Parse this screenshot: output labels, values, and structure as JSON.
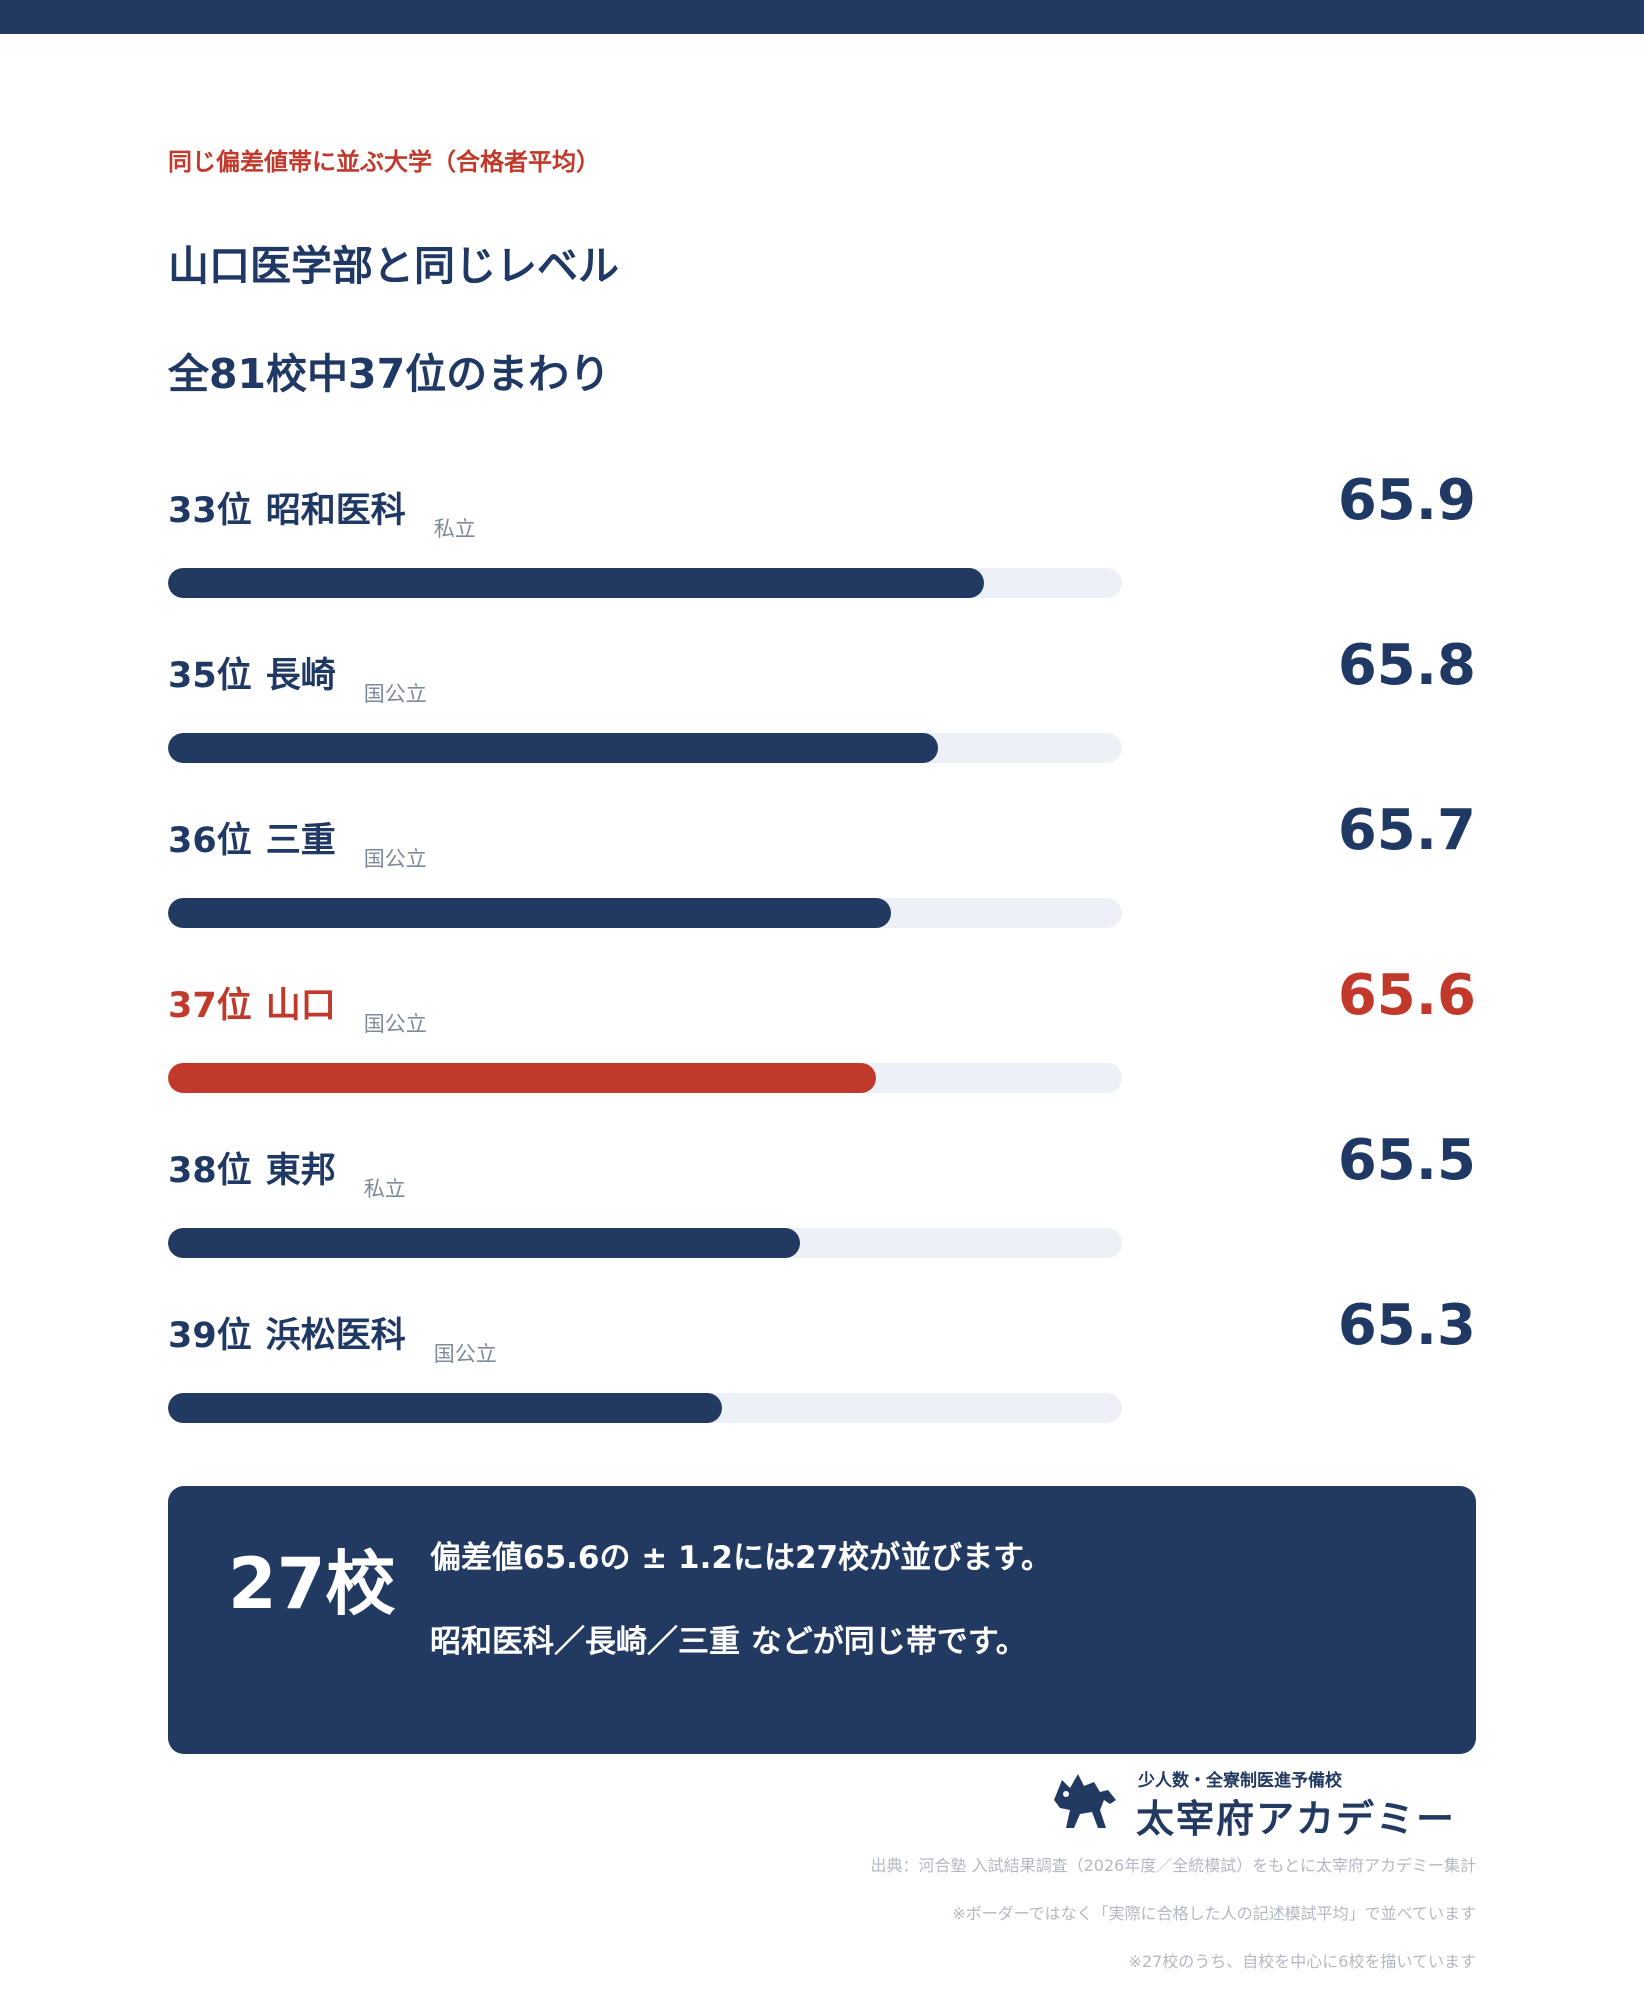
{
  "header": {
    "eyebrow": "同じ偏差値帯に並ぶ大学（合格者平均）",
    "title_line1": "山口医学部と同じレベル",
    "title_line2": "全81校中37位のまわり"
  },
  "colors": {
    "navy": "#223962",
    "accent_red": "#c0392b",
    "track": "#edf0f6"
  },
  "rows": [
    {
      "rank": "33位",
      "name": "昭和医科",
      "type": "私立",
      "value": "65.9",
      "fill": 0.855,
      "highlight": false
    },
    {
      "rank": "35位",
      "name": "長崎",
      "type": "国公立",
      "value": "65.8",
      "fill": 0.807,
      "highlight": false
    },
    {
      "rank": "36位",
      "name": "三重",
      "type": "国公立",
      "value": "65.7",
      "fill": 0.758,
      "highlight": false
    },
    {
      "rank": "37位",
      "name": "山口",
      "type": "国公立",
      "value": "65.6",
      "fill": 0.742,
      "highlight": true
    },
    {
      "rank": "38位",
      "name": "東邦",
      "type": "私立",
      "value": "65.5",
      "fill": 0.662,
      "highlight": false
    },
    {
      "rank": "39位",
      "name": "浜松医科",
      "type": "国公立",
      "value": "65.3",
      "fill": 0.581,
      "highlight": false
    }
  ],
  "chart_data": {
    "type": "bar",
    "categories": [
      "33位 昭和医科",
      "35位 長崎",
      "36位 三重",
      "37位 山口",
      "38位 東邦",
      "39位 浜松医科"
    ],
    "values": [
      65.9,
      65.8,
      65.7,
      65.6,
      65.5,
      65.3
    ],
    "title": "山口医学部と同じレベル",
    "xlabel": "",
    "ylabel": "",
    "orientation": "horizontal",
    "highlight_category": "37位 山口",
    "grid": false
  },
  "summary": {
    "count": "27校",
    "line1": "偏差値65.6の ± 1.2には27校が並びます。",
    "line2": "昭和医科／長崎／三重 などが同じ帯です。"
  },
  "logo": {
    "tagline": "少人数・全寮制医進予備校",
    "name": "太宰府アカデミー",
    "mark_icon": "horse-icon"
  },
  "footnotes": {
    "source": "出典：河合塾 入試結果調査（2026年度／全統模試）をもとに太宰府アカデミー集計",
    "note1": "※ボーダーではなく「実際に合格した人の記述模試平均」で並べています",
    "note2": "※27校のうち、自校を中心に6校を描いています"
  }
}
